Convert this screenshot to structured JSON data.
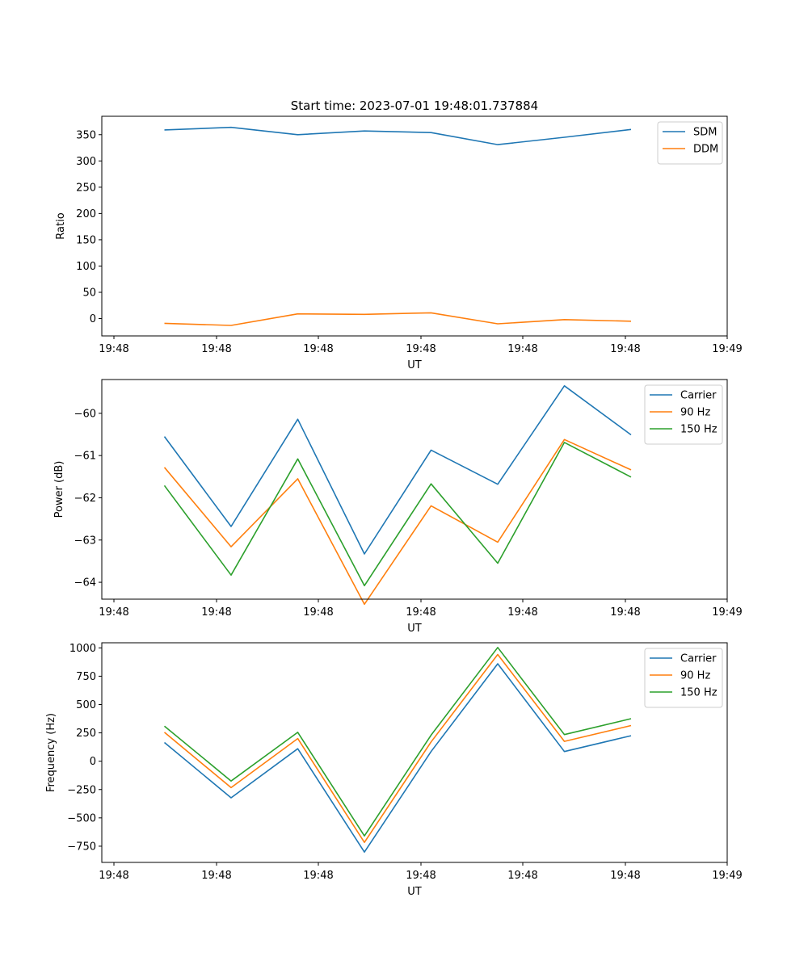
{
  "figure": {
    "title": "Start time: 2023-07-01 19:48:01.737884"
  },
  "colors": {
    "blue": "#1f77b4",
    "orange": "#ff7f0e",
    "green": "#2ca02c"
  },
  "chart_data": [
    {
      "type": "line",
      "title": "Start time: 2023-07-01 19:48:01.737884",
      "xlabel": "UT",
      "ylabel": "Ratio",
      "x_tick_labels": [
        "19:48",
        "19:48",
        "19:48",
        "19:48",
        "19:48",
        "19:48",
        "19:49"
      ],
      "ylim": [
        -33,
        385
      ],
      "yticks": [
        0,
        50,
        100,
        150,
        200,
        250,
        300,
        350
      ],
      "ytick_labels": [
        "0",
        "50",
        "100",
        "150",
        "200",
        "250",
        "300",
        "350"
      ],
      "legend_position": "top-right",
      "series": [
        {
          "name": "SDM",
          "color": "#1f77b4",
          "values": [
            359,
            364,
            350,
            357,
            354,
            331,
            345,
            360
          ]
        },
        {
          "name": "DDM",
          "color": "#ff7f0e",
          "values": [
            -9,
            -13,
            9,
            8,
            11,
            -10,
            -2,
            -5
          ]
        }
      ]
    },
    {
      "type": "line",
      "title": "",
      "xlabel": "UT",
      "ylabel": "Power (dB)",
      "x_tick_labels": [
        "19:48",
        "19:48",
        "19:48",
        "19:48",
        "19:48",
        "19:48",
        "19:49"
      ],
      "ylim": [
        -64.4,
        -59.2
      ],
      "yticks": [
        -64,
        -63,
        -62,
        -61,
        -60
      ],
      "ytick_labels": [
        "−64",
        "−63",
        "−62",
        "−61",
        "−60"
      ],
      "legend_position": "top-right",
      "series": [
        {
          "name": "Carrier",
          "color": "#1f77b4",
          "values": [
            -60.55,
            -62.68,
            -60.14,
            -63.33,
            -60.87,
            -61.68,
            -59.35,
            -60.51
          ]
        },
        {
          "name": "90 Hz",
          "color": "#ff7f0e",
          "values": [
            -61.28,
            -63.16,
            -61.55,
            -64.52,
            -62.19,
            -63.05,
            -60.62,
            -61.34
          ]
        },
        {
          "name": "150 Hz",
          "color": "#2ca02c",
          "values": [
            -61.71,
            -63.83,
            -61.08,
            -64.08,
            -61.67,
            -63.55,
            -60.69,
            -61.51
          ]
        }
      ]
    },
    {
      "type": "line",
      "title": "",
      "xlabel": "UT",
      "ylabel": "Frequency (Hz)",
      "x_tick_labels": [
        "19:48",
        "19:48",
        "19:48",
        "19:48",
        "19:48",
        "19:48",
        "19:49"
      ],
      "ylim": [
        -893,
        1045
      ],
      "yticks": [
        -750,
        -500,
        -250,
        0,
        250,
        500,
        750,
        1000
      ],
      "ytick_labels": [
        "−750",
        "−500",
        "−250",
        "0",
        "250",
        "500",
        "750",
        "1000"
      ],
      "legend_position": "top-right",
      "series": [
        {
          "name": "Carrier",
          "color": "#1f77b4",
          "values": [
            165,
            -323,
            110,
            -802,
            85,
            860,
            85,
            225
          ]
        },
        {
          "name": "90 Hz",
          "color": "#ff7f0e",
          "values": [
            255,
            -233,
            200,
            -716,
            170,
            942,
            175,
            315
          ]
        },
        {
          "name": "150 Hz",
          "color": "#2ca02c",
          "values": [
            310,
            -175,
            255,
            -659,
            230,
            1004,
            235,
            375
          ]
        }
      ]
    }
  ]
}
